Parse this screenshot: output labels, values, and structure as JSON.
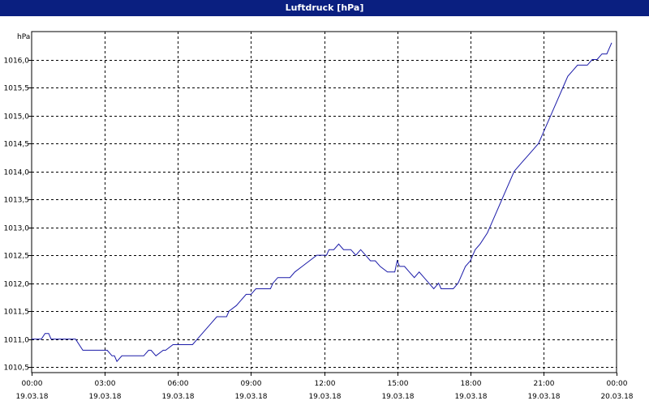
{
  "window": {
    "title": "Luftdruck [hPa]"
  },
  "chart_data": {
    "type": "line",
    "title": "Luftdruck [hPa]",
    "ylabel": "hPa",
    "xlabel": "",
    "grid": true,
    "xlim": [
      0,
      24
    ],
    "ylim": [
      1010.4,
      1016.5
    ],
    "y_ticks": [
      {
        "value": 1010.5,
        "label": "1010,5"
      },
      {
        "value": 1011.0,
        "label": "1011,0"
      },
      {
        "value": 1011.5,
        "label": "1011,5"
      },
      {
        "value": 1012.0,
        "label": "1012,0"
      },
      {
        "value": 1012.5,
        "label": "1012,5"
      },
      {
        "value": 1013.0,
        "label": "1013,0"
      },
      {
        "value": 1013.5,
        "label": "1013,5"
      },
      {
        "value": 1014.0,
        "label": "1014,0"
      },
      {
        "value": 1014.5,
        "label": "1014,5"
      },
      {
        "value": 1015.0,
        "label": "1015,0"
      },
      {
        "value": 1015.5,
        "label": "1015,5"
      },
      {
        "value": 1016.0,
        "label": "1016,0"
      }
    ],
    "x_ticks": [
      {
        "value": 0,
        "time": "00:00",
        "date": "19.03.18"
      },
      {
        "value": 3,
        "time": "03:00",
        "date": "19.03.18"
      },
      {
        "value": 6,
        "time": "06:00",
        "date": "19.03.18"
      },
      {
        "value": 9,
        "time": "09:00",
        "date": "19.03.18"
      },
      {
        "value": 12,
        "time": "12:00",
        "date": "19.03.18"
      },
      {
        "value": 15,
        "time": "15:00",
        "date": "19.03.18"
      },
      {
        "value": 18,
        "time": "18:00",
        "date": "19.03.18"
      },
      {
        "value": 21,
        "time": "21:00",
        "date": "19.03.18"
      },
      {
        "value": 24,
        "time": "00:00",
        "date": "20.03.18"
      }
    ],
    "series": [
      {
        "color": "#1a1aa8",
        "x": [
          0.0,
          0.4,
          0.55,
          0.7,
          0.8,
          1.0,
          1.3,
          1.8,
          2.1,
          2.5,
          2.8,
          3.1,
          3.3,
          3.4,
          3.5,
          3.7,
          4.0,
          4.3,
          4.6,
          4.8,
          4.9,
          5.1,
          5.4,
          5.5,
          5.8,
          6.0,
          6.4,
          6.6,
          6.8,
          7.0,
          7.2,
          7.4,
          7.6,
          7.8,
          8.0,
          8.1,
          8.4,
          8.6,
          8.8,
          9.0,
          9.2,
          9.4,
          9.6,
          9.8,
          9.9,
          10.1,
          10.3,
          10.6,
          10.8,
          11.1,
          11.4,
          11.7,
          11.9,
          12.1,
          12.2,
          12.4,
          12.6,
          12.8,
          12.9,
          13.1,
          13.3,
          13.5,
          13.7,
          13.9,
          14.1,
          14.3,
          14.6,
          14.9,
          15.0,
          15.1,
          15.3,
          15.5,
          15.7,
          15.9,
          16.1,
          16.3,
          16.5,
          16.7,
          16.8,
          17.0,
          17.3,
          17.5,
          17.6,
          17.8,
          18.0,
          18.2,
          18.4,
          18.7,
          19.0,
          19.2,
          19.4,
          19.6,
          19.8,
          20.0,
          20.2,
          20.4,
          20.6,
          20.8,
          21.0,
          21.2,
          21.4,
          21.6,
          21.8,
          22.0,
          22.2,
          22.4,
          22.6,
          22.8,
          23.0,
          23.2,
          23.4,
          23.6,
          23.8
        ],
        "y": [
          1011.0,
          1011.0,
          1011.1,
          1011.1,
          1011.0,
          1011.0,
          1011.0,
          1011.0,
          1010.8,
          1010.8,
          1010.8,
          1010.8,
          1010.7,
          1010.7,
          1010.6,
          1010.7,
          1010.7,
          1010.7,
          1010.7,
          1010.8,
          1010.8,
          1010.7,
          1010.8,
          1010.8,
          1010.9,
          1010.9,
          1010.9,
          1010.9,
          1011.0,
          1011.1,
          1011.2,
          1011.3,
          1011.4,
          1011.4,
          1011.4,
          1011.5,
          1011.6,
          1011.7,
          1011.8,
          1011.8,
          1011.9,
          1011.9,
          1011.9,
          1011.9,
          1012.0,
          1012.1,
          1012.1,
          1012.1,
          1012.2,
          1012.3,
          1012.4,
          1012.5,
          1012.5,
          1012.5,
          1012.6,
          1012.6,
          1012.7,
          1012.6,
          1012.6,
          1012.6,
          1012.5,
          1012.6,
          1012.5,
          1012.4,
          1012.4,
          1012.3,
          1012.2,
          1012.2,
          1012.4,
          1012.3,
          1012.3,
          1012.2,
          1012.1,
          1012.2,
          1012.1,
          1012.0,
          1011.9,
          1012.0,
          1011.9,
          1011.9,
          1011.9,
          1012.0,
          1012.1,
          1012.3,
          1012.4,
          1012.6,
          1012.7,
          1012.9,
          1013.2,
          1013.4,
          1013.6,
          1013.8,
          1014.0,
          1014.1,
          1014.2,
          1014.3,
          1014.4,
          1014.5,
          1014.7,
          1014.9,
          1015.1,
          1015.3,
          1015.5,
          1015.7,
          1015.8,
          1015.9,
          1015.9,
          1015.9,
          1016.0,
          1016.0,
          1016.1,
          1016.1,
          1016.3
        ]
      }
    ]
  }
}
